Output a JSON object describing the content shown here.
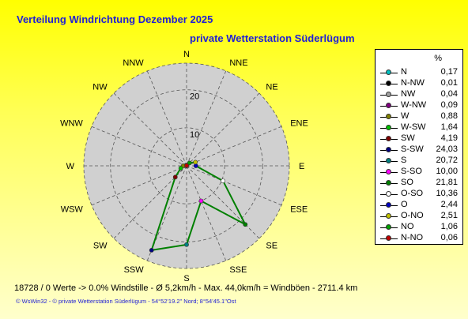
{
  "chart_data": {
    "type": "radar",
    "title": "Verteilung Windrichtung   Dezember 2025",
    "subtitle": "private Wetterstation Süderlügum",
    "legend_unit": "%",
    "directions": [
      "N",
      "NNE",
      "NE",
      "ENE",
      "E",
      "ESE",
      "SE",
      "SSE",
      "S",
      "SSW",
      "SW",
      "WSW",
      "W",
      "WNW",
      "NW",
      "NNW"
    ],
    "rings": [
      10,
      20
    ],
    "rmax": 27,
    "series": [
      {
        "name": "N",
        "value": 0.17,
        "color": "#00c0c0"
      },
      {
        "name": "N-NW",
        "value": 0.01,
        "color": "#000000"
      },
      {
        "name": "NW",
        "value": 0.04,
        "color": "#a0a0a0"
      },
      {
        "name": "W-NW",
        "value": 0.09,
        "color": "#800080"
      },
      {
        "name": "W",
        "value": 0.88,
        "color": "#808000"
      },
      {
        "name": "W-SW",
        "value": 1.64,
        "color": "#00c000"
      },
      {
        "name": "SW",
        "value": 4.19,
        "color": "#800000"
      },
      {
        "name": "S-SW",
        "value": 24.03,
        "color": "#000080"
      },
      {
        "name": "S",
        "value": 20.72,
        "color": "#008080"
      },
      {
        "name": "S-SO",
        "value": 10.0,
        "color": "#ff00ff"
      },
      {
        "name": "SO",
        "value": 21.81,
        "color": "#008000"
      },
      {
        "name": "O-SO",
        "value": 10.36,
        "color": "#ffffff"
      },
      {
        "name": "O",
        "value": 2.44,
        "color": "#0000c0"
      },
      {
        "name": "O-NO",
        "value": 2.51,
        "color": "#c0c000"
      },
      {
        "name": "NO",
        "value": 1.06,
        "color": "#00a000"
      },
      {
        "name": "N-NO",
        "value": 0.06,
        "color": "#c00000"
      }
    ],
    "line_color": "#008000",
    "background_disc_color": "#d0d0d0"
  },
  "footer": {
    "summary": "18728 / 0 Werte  -> 0.0% Windstille   -   Ø 5,2km/h  -  Max. 44,0km/h = Windböen   -   2711.4 km",
    "copyright": "© WsWin32   -   © private Wetterstation Süderlügum   -   54°52'19.2\" Nord; 8°54'45.1\"Ost"
  }
}
